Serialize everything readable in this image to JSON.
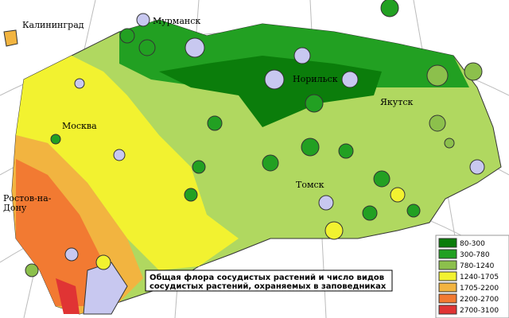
{
  "map": {
    "title_lines": [
      "Общая флора сосудистых растений и число видов",
      "сосудистых растений, охраняемых в заповедниках"
    ],
    "cities": [
      {
        "label_lines": [
          "Калининград"
        ]
      },
      {
        "label_lines": [
          "Мурманск"
        ]
      },
      {
        "label_lines": [
          "Норильск"
        ]
      },
      {
        "label_lines": [
          "Якутск"
        ]
      },
      {
        "label_lines": [
          "Москва"
        ]
      },
      {
        "label_lines": [
          "Томск"
        ]
      },
      {
        "label_lines": [
          "Ростов-на-",
          "Дону"
        ]
      }
    ],
    "legend": [
      {
        "label": "80-300",
        "color": "#0b7d0b"
      },
      {
        "label": "300-780",
        "color": "#22a022"
      },
      {
        "label": "780-1240",
        "color": "#8cc04c"
      },
      {
        "label": "1240-1705",
        "color": "#f2f230"
      },
      {
        "label": "1705-2200",
        "color": "#f2b440"
      },
      {
        "label": "2200-2700",
        "color": "#f27a32"
      },
      {
        "label": "2700-3100",
        "color": "#e03434"
      }
    ]
  }
}
